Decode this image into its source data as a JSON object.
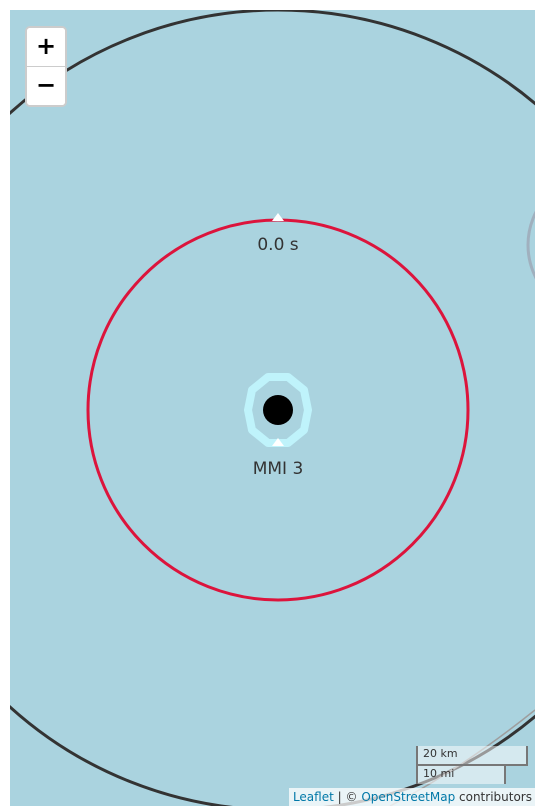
{
  "map": {
    "background_color": "#aad3df",
    "wave_time_label": "0.0 s",
    "intensity_label": "MMI 3",
    "circles": {
      "outer_ring_color": "#333333",
      "s_wave_ring_color": "#dc143c",
      "intensity_halo_color": "#bff3fb",
      "epicenter_color": "#000000",
      "neighbor_ring_color": "#9ea8b5"
    }
  },
  "zoom": {
    "zoom_in_label": "+",
    "zoom_out_label": "−"
  },
  "scale": {
    "metric_label": "20 km",
    "imperial_label": "10 mi"
  },
  "attribution": {
    "leaflet_label": "Leaflet",
    "separator": "|",
    "copyright_symbol": "©",
    "osm_label": "OpenStreetMap",
    "contributors_label": "contributors"
  }
}
